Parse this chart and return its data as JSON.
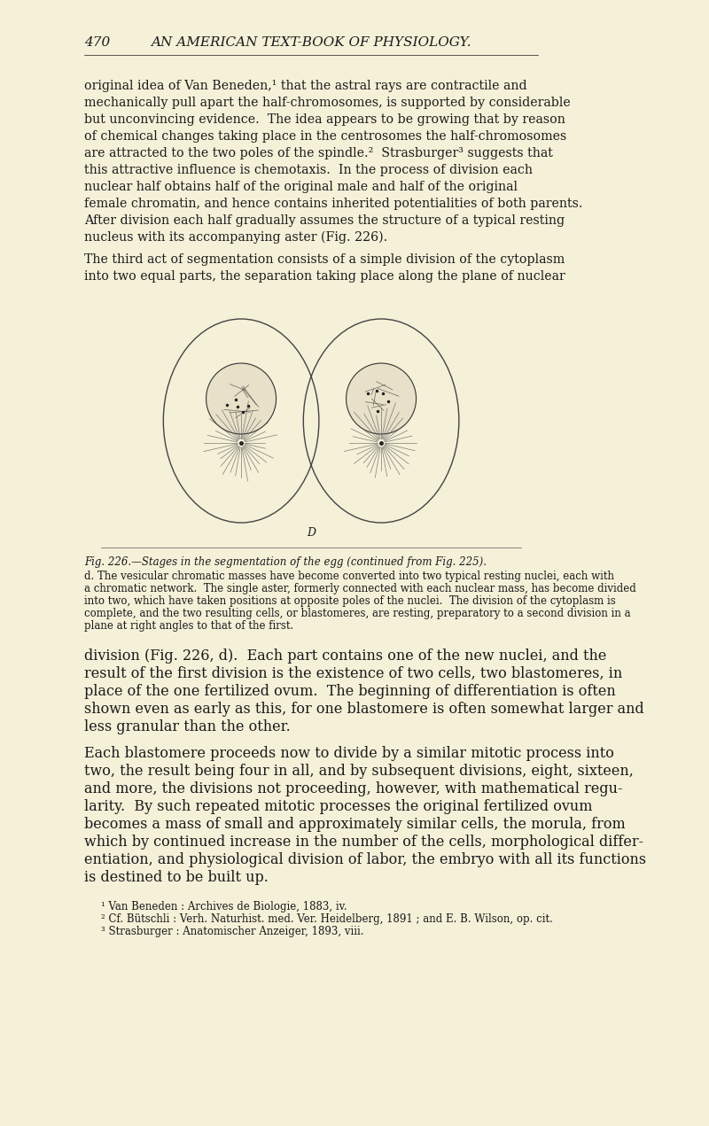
{
  "background_color": "#f5f0d8",
  "page_number": "470",
  "header": "AN AMERICAN TEXT-BOOK OF PHYSIOLOGY.",
  "paragraph1": "original idea of Van Beneden,¹ that the astral rays are contractile and\nmechanically pull apart the half-chromosomes, is supported by considerable\nbut unconvincing evidence.  The idea appears to be growing that by reason\nof chemical changes taking place in the centrosomes the half-chromosomes\nare attracted to the two poles of the spindle.²  Strasburger³ suggests that\nthis attractive influence is chemotaxis.  In the process of division each\nnuclear half obtains half of the original male and half of the original\nfemale chromatin, and hence contains inherited potentialities of both parents.\nAfter division each half gradually assumes the structure of a typical resting\nnucleus with its accompanying aster (Fig. 226).",
  "paragraph2": "The third act of segmentation consists of a simple division of the cytoplasm\ninto two equal parts, the separation taking place along the plane of nuclear",
  "fig_caption_title": "Fig. 226.—Stages in the segmentation of the egg (continued from Fig. 225).",
  "fig_caption_body": "d. The vesicular chromatic masses have become converted into two typical resting nuclei, each with\na chromatic network.  The single aster, formerly connected with each nuclear mass, has become divided\ninto two, which have taken positions at opposite poles of the nuclei.  The division of the cytoplasm is\ncomplete, and the two resulting cells, or blastomeres, are resting, preparatory to a second division in a\nplane at right angles to that of the first.",
  "paragraph3": "division (Fig. 226, d).  Each part contains one of the new nuclei, and the\nresult of the first division is the existence of two cells, two blastomeres, in\nplace of the one fertilized ovum.  The beginning of differentiation is often\nshown even as early as this, for one blastomere is often somewhat larger and\nless granular than the other.",
  "paragraph4": "Each blastomere proceeds now to divide by a similar mitotic process into\ntwo, the result being four in all, and by subsequent divisions, eight, sixteen,\nand more, the divisions not proceeding, however, with mathematical regu-\nlarity.  By such repeated mitotic processes the original fertilized ovum\nbecomes a mass of small and approximately similar cells, the morula, from\nwhich by continued increase in the number of the cells, morphological differ-\nentiation, and physiological division of labor, the embryo with all its functions\nis destined to be built up.",
  "footnote1": "¹ Van Beneden : Archives de Biologie, 1883, iv.",
  "footnote2": "² Cf. Bütschli : Verh. Naturhist. med. Ver. Heidelberg, 1891 ; and E. B. Wilson, op. cit.",
  "footnote3": "³ Strasburger : Anatomischer Anzeiger, 1893, viii.",
  "text_color": "#1a1a1a",
  "fig_label": "D"
}
